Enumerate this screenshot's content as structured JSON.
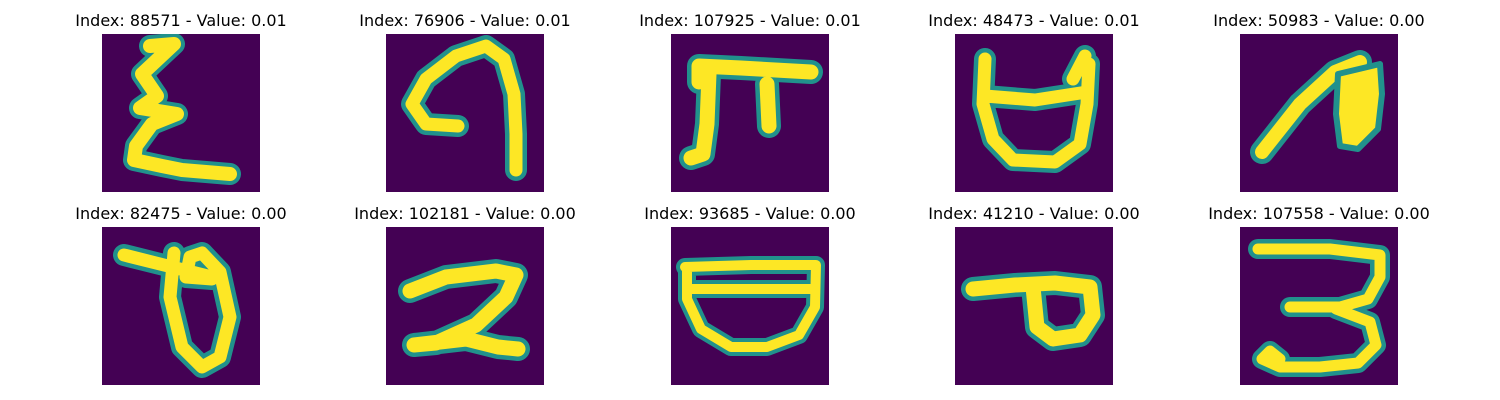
{
  "colors": {
    "background": "#440154",
    "stroke_core": "#fde725",
    "stroke_edge": "#21918c"
  },
  "tiles": [
    {
      "title": "Index: 88571 - Value: 0.01"
    },
    {
      "title": "Index: 76906 - Value: 0.01"
    },
    {
      "title": "Index: 107925 - Value: 0.01"
    },
    {
      "title": "Index: 48473 - Value: 0.01"
    },
    {
      "title": "Index: 50983 - Value: 0.00"
    },
    {
      "title": "Index: 82475 - Value: 0.00"
    },
    {
      "title": "Index: 102181 - Value: 0.00"
    },
    {
      "title": "Index: 93685 - Value: 0.00"
    },
    {
      "title": "Index: 41210 - Value: 0.00"
    },
    {
      "title": "Index: 107558 - Value: 0.00"
    }
  ]
}
